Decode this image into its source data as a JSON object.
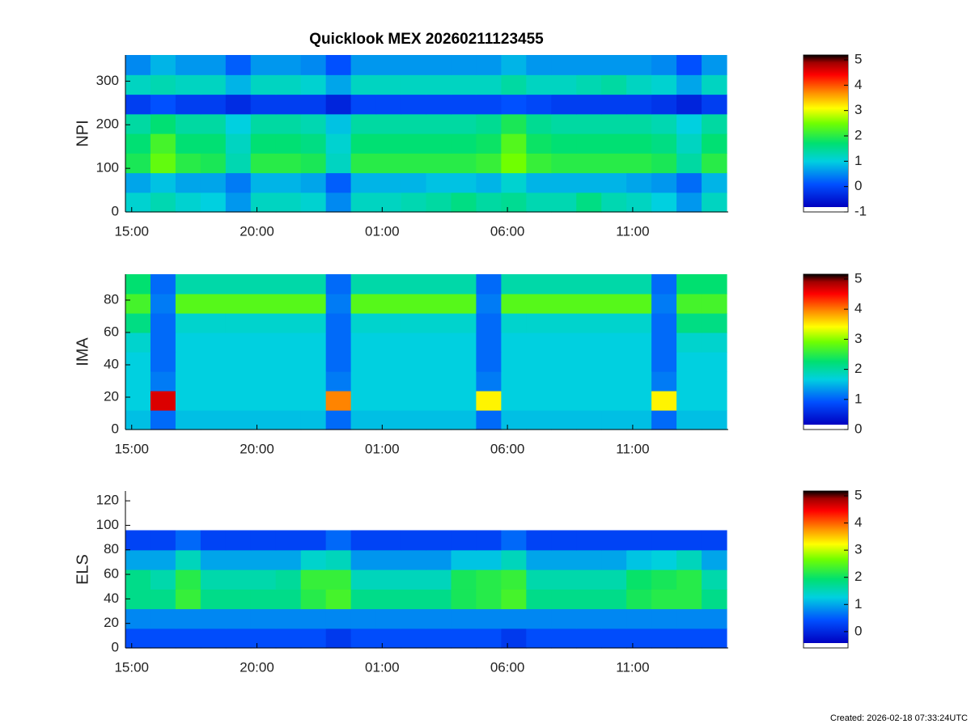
{
  "chart_data": [
    {
      "type": "heatmap",
      "title": "Quicklook MEX 20260211123455",
      "ylabel": "NPI",
      "xlim": [
        -0.25,
        23.75
      ],
      "ylim": [
        0,
        360
      ],
      "xticks": [
        {
          "value": 0,
          "label": "15:00"
        },
        {
          "value": 5,
          "label": "20:00"
        },
        {
          "value": 10,
          "label": "01:00"
        },
        {
          "value": 15,
          "label": "06:00"
        },
        {
          "value": 20,
          "label": "11:00"
        }
      ],
      "yticks": [
        0,
        100,
        200,
        300
      ],
      "xbins": [
        -0.25,
        0.75,
        1.75,
        2.75,
        3.75,
        4.75,
        5.75,
        6.75,
        7.75,
        8.75,
        9.75,
        10.75,
        11.75,
        12.75,
        13.75,
        14.75,
        15.75,
        16.75,
        17.75,
        18.75,
        19.75,
        20.75,
        21.75,
        22.75,
        23.75
      ],
      "ybins": [
        0,
        45,
        90,
        135,
        180,
        225,
        270,
        315,
        360
      ],
      "z": [
        [
          0.9,
          1.1,
          0.9,
          0.8,
          0.4,
          1.0,
          1.0,
          0.9,
          0.3,
          1.0,
          1.0,
          1.1,
          1.2,
          1.4,
          1.2,
          1.3,
          1.1,
          1.1,
          1.4,
          1.1,
          1.0,
          0.8,
          0.4,
          1.0
        ],
        [
          0.5,
          0.7,
          0.5,
          0.5,
          0.2,
          0.6,
          0.6,
          0.5,
          0.0,
          0.6,
          0.6,
          0.6,
          0.7,
          0.7,
          0.6,
          0.9,
          0.6,
          0.6,
          0.6,
          0.6,
          0.5,
          0.4,
          0.1,
          0.6
        ],
        [
          1.7,
          2.2,
          1.8,
          1.7,
          1.1,
          1.8,
          1.8,
          1.7,
          1.0,
          1.8,
          1.8,
          1.8,
          1.8,
          1.8,
          1.9,
          2.3,
          1.9,
          1.8,
          1.8,
          1.8,
          1.8,
          1.7,
          1.2,
          1.8
        ],
        [
          1.5,
          2.0,
          1.5,
          1.5,
          1.0,
          1.5,
          1.5,
          1.4,
          0.9,
          1.5,
          1.5,
          1.5,
          1.5,
          1.5,
          1.6,
          2.1,
          1.6,
          1.5,
          1.5,
          1.5,
          1.5,
          1.4,
          1.0,
          1.5
        ],
        [
          1.2,
          1.5,
          1.2,
          1.2,
          0.8,
          1.2,
          1.2,
          1.1,
          0.7,
          1.2,
          1.2,
          1.2,
          1.2,
          1.2,
          1.3,
          1.7,
          1.3,
          1.2,
          1.2,
          1.2,
          1.2,
          1.1,
          0.8,
          1.2
        ],
        [
          -0.3,
          -0.1,
          -0.3,
          -0.3,
          -0.5,
          -0.3,
          -0.3,
          -0.3,
          -0.6,
          -0.2,
          -0.2,
          -0.2,
          -0.2,
          -0.2,
          -0.2,
          -0.1,
          -0.2,
          -0.3,
          -0.3,
          -0.3,
          -0.3,
          -0.4,
          -0.6,
          -0.3
        ],
        [
          1.0,
          1.1,
          1.0,
          1.0,
          0.6,
          1.0,
          1.0,
          0.9,
          0.5,
          1.0,
          1.0,
          1.0,
          1.0,
          1.0,
          1.0,
          1.2,
          1.0,
          1.0,
          1.1,
          1.2,
          1.0,
          0.9,
          0.5,
          1.0
        ],
        [
          0.3,
          0.6,
          0.4,
          0.4,
          0.0,
          0.4,
          0.4,
          0.3,
          -0.1,
          0.4,
          0.4,
          0.4,
          0.4,
          0.4,
          0.4,
          0.6,
          0.4,
          0.4,
          0.4,
          0.4,
          0.4,
          0.3,
          -0.1,
          0.4
        ]
      ],
      "colorbar": {
        "lim": [
          -1,
          5
        ],
        "ticks": [
          -1,
          0,
          1,
          2,
          3,
          4,
          5
        ]
      }
    },
    {
      "type": "heatmap",
      "ylabel": "IMA",
      "xlim": [
        -0.25,
        23.75
      ],
      "ylim": [
        0,
        96
      ],
      "xticks": [
        {
          "value": 0,
          "label": "15:00"
        },
        {
          "value": 5,
          "label": "20:00"
        },
        {
          "value": 10,
          "label": "01:00"
        },
        {
          "value": 15,
          "label": "06:00"
        },
        {
          "value": 20,
          "label": "11:00"
        }
      ],
      "yticks": [
        0,
        20,
        40,
        60,
        80
      ],
      "xbins": [
        -0.25,
        0.75,
        1.75,
        2.75,
        3.75,
        4.75,
        5.75,
        6.75,
        7.75,
        8.75,
        9.75,
        10.75,
        11.75,
        12.75,
        13.75,
        14.75,
        15.75,
        16.75,
        17.75,
        18.75,
        19.75,
        20.75,
        21.75,
        22.75,
        23.75
      ],
      "ybins": [
        0,
        12,
        24,
        36,
        48,
        60,
        72,
        84,
        96
      ],
      "z": [
        [
          1.4,
          0.9,
          1.4,
          1.4,
          1.4,
          1.4,
          1.4,
          1.4,
          0.9,
          1.4,
          1.4,
          1.4,
          1.4,
          1.4,
          0.9,
          1.4,
          1.4,
          1.4,
          1.4,
          1.4,
          1.4,
          0.9,
          1.4,
          1.4
        ],
        [
          1.5,
          4.5,
          1.5,
          1.5,
          1.5,
          1.5,
          1.5,
          1.5,
          3.8,
          1.5,
          1.5,
          1.5,
          1.5,
          1.5,
          3.3,
          1.5,
          1.5,
          1.5,
          1.5,
          1.5,
          1.5,
          3.3,
          1.5,
          1.5
        ],
        [
          1.5,
          1.0,
          1.5,
          1.5,
          1.5,
          1.5,
          1.5,
          1.5,
          1.0,
          1.5,
          1.5,
          1.5,
          1.5,
          1.5,
          1.0,
          1.5,
          1.5,
          1.5,
          1.5,
          1.5,
          1.5,
          1.0,
          1.5,
          1.5
        ],
        [
          1.5,
          0.9,
          1.5,
          1.5,
          1.5,
          1.5,
          1.5,
          1.5,
          0.9,
          1.5,
          1.5,
          1.5,
          1.5,
          1.5,
          0.9,
          1.5,
          1.5,
          1.5,
          1.5,
          1.5,
          1.5,
          0.9,
          1.5,
          1.5
        ],
        [
          1.6,
          0.9,
          1.5,
          1.5,
          1.5,
          1.5,
          1.5,
          1.5,
          0.9,
          1.5,
          1.5,
          1.5,
          1.5,
          1.5,
          0.9,
          1.5,
          1.5,
          1.5,
          1.5,
          1.5,
          1.5,
          0.9,
          1.6,
          1.6
        ],
        [
          2.0,
          0.9,
          1.6,
          1.6,
          1.6,
          1.6,
          1.6,
          1.6,
          0.9,
          1.6,
          1.6,
          1.6,
          1.6,
          1.6,
          0.9,
          1.6,
          1.6,
          1.6,
          1.6,
          1.6,
          1.6,
          0.9,
          2.0,
          2.0
        ],
        [
          2.5,
          1.0,
          2.6,
          2.6,
          2.6,
          2.6,
          2.6,
          2.6,
          1.0,
          2.6,
          2.6,
          2.6,
          2.6,
          2.6,
          1.0,
          2.6,
          2.6,
          2.6,
          2.6,
          2.6,
          2.6,
          1.0,
          2.5,
          2.5
        ],
        [
          2.1,
          0.9,
          1.8,
          1.8,
          1.8,
          1.8,
          1.8,
          1.8,
          0.9,
          1.8,
          1.8,
          1.8,
          1.8,
          1.8,
          0.9,
          1.8,
          1.8,
          1.8,
          1.8,
          1.8,
          1.8,
          0.9,
          2.1,
          2.1
        ]
      ],
      "colorbar": {
        "lim": [
          0,
          5
        ],
        "ticks": [
          0,
          1,
          2,
          3,
          4,
          5
        ]
      }
    },
    {
      "type": "heatmap",
      "ylabel": "ELS",
      "xlim": [
        -0.25,
        23.75
      ],
      "ylim": [
        0,
        128
      ],
      "xticks": [
        {
          "value": 0,
          "label": "15:00"
        },
        {
          "value": 5,
          "label": "20:00"
        },
        {
          "value": 10,
          "label": "01:00"
        },
        {
          "value": 15,
          "label": "06:00"
        },
        {
          "value": 20,
          "label": "11:00"
        }
      ],
      "yticks": [
        0,
        20,
        40,
        60,
        80,
        100,
        120
      ],
      "xbins": [
        -0.25,
        0.75,
        1.75,
        2.75,
        3.75,
        4.75,
        5.75,
        6.75,
        7.75,
        8.75,
        9.75,
        10.75,
        11.75,
        12.75,
        13.75,
        14.75,
        15.75,
        16.75,
        17.75,
        18.75,
        19.75,
        20.75,
        21.75,
        22.75,
        23.75
      ],
      "ybins": [
        0,
        16,
        32,
        48,
        64,
        80,
        96,
        112,
        128
      ],
      "z": [
        [
          0.2,
          0.2,
          0.2,
          0.2,
          0.2,
          0.2,
          0.2,
          0.2,
          0.0,
          0.2,
          0.2,
          0.2,
          0.2,
          0.2,
          0.2,
          0.0,
          0.2,
          0.2,
          0.2,
          0.2,
          0.2,
          0.2,
          0.2,
          0.2
        ],
        [
          0.6,
          0.6,
          0.6,
          0.6,
          0.6,
          0.6,
          0.6,
          0.6,
          0.6,
          0.6,
          0.6,
          0.6,
          0.6,
          0.6,
          0.6,
          0.6,
          0.6,
          0.6,
          0.6,
          0.6,
          0.6,
          0.6,
          0.6,
          0.6
        ],
        [
          1.6,
          1.6,
          2.1,
          1.6,
          1.6,
          1.6,
          1.6,
          2.0,
          2.2,
          1.6,
          1.6,
          1.6,
          1.6,
          1.9,
          2.0,
          2.2,
          1.6,
          1.6,
          1.6,
          1.6,
          1.9,
          2.0,
          2.0,
          1.6
        ],
        [
          1.6,
          1.4,
          2.0,
          1.4,
          1.4,
          1.4,
          1.5,
          2.1,
          2.1,
          1.3,
          1.3,
          1.3,
          1.3,
          1.9,
          2.0,
          2.1,
          1.4,
          1.4,
          1.4,
          1.4,
          1.8,
          1.9,
          2.0,
          1.4
        ],
        [
          0.8,
          0.8,
          1.3,
          0.8,
          0.8,
          0.8,
          0.8,
          1.2,
          1.3,
          0.7,
          0.7,
          0.7,
          0.7,
          1.0,
          1.0,
          1.3,
          0.8,
          0.8,
          0.8,
          0.8,
          1.0,
          1.1,
          1.3,
          0.8
        ],
        [
          0.1,
          0.1,
          0.4,
          0.1,
          0.1,
          0.1,
          0.1,
          0.1,
          0.4,
          0.1,
          0.1,
          0.1,
          0.1,
          0.1,
          0.1,
          0.4,
          0.1,
          0.1,
          0.1,
          0.1,
          0.1,
          0.1,
          0.1,
          0.1
        ],
        [
          null,
          null,
          null,
          null,
          null,
          null,
          null,
          null,
          null,
          null,
          null,
          null,
          null,
          null,
          null,
          null,
          null,
          null,
          null,
          null,
          null,
          null,
          null,
          null
        ],
        [
          null,
          null,
          null,
          null,
          null,
          null,
          null,
          null,
          null,
          null,
          null,
          null,
          null,
          null,
          null,
          null,
          null,
          null,
          null,
          null,
          null,
          null,
          null,
          null
        ]
      ],
      "colorbar": {
        "lim": [
          -0.6,
          5
        ],
        "ticks": [
          0,
          1,
          2,
          3,
          4,
          5
        ]
      }
    }
  ],
  "colormap": [
    [
      0,
      "#0000c0"
    ],
    [
      0.15,
      "#0050ff"
    ],
    [
      0.3,
      "#00d0e0"
    ],
    [
      0.42,
      "#00e070"
    ],
    [
      0.55,
      "#70ff00"
    ],
    [
      0.65,
      "#ffff00"
    ],
    [
      0.75,
      "#ff9000"
    ],
    [
      0.87,
      "#ff0000"
    ],
    [
      0.95,
      "#a00000"
    ],
    [
      1,
      "#000000"
    ]
  ],
  "footer": "Created: 2026-02-18 07:33:24UTC"
}
